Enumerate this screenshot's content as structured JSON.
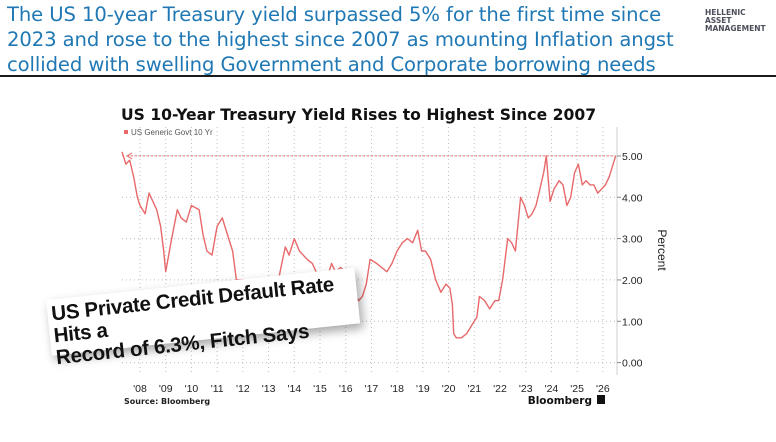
{
  "headline": [
    "The US 10-year Treasury yield surpassed 5% for the first time since",
    "2023 and rose to the highest since 2007 as mounting Inflation angst",
    "collided with swelling Government and Corporate borrowing needs"
  ],
  "logo": [
    "HELLENIC",
    "ASSET",
    "MANAGEMENT"
  ],
  "banner": [
    "US Private Credit Default Rate Hits a",
    "Record of 6.3%, Fitch Says"
  ],
  "colors": {
    "headline": "#1f78b4",
    "series": "#e8696a",
    "rule": "#1a1a1a"
  },
  "chart_data": {
    "type": "line",
    "title": "US 10-Year Treasury Yield Rises to Highest Since 2007",
    "ylabel": "Percent",
    "legend": "US Generic Govt 10 Yr",
    "legend_position": "top-left",
    "source": "Source: Bloomberg",
    "brand": "Bloomberg",
    "ylim": [
      -0.3,
      5.7
    ],
    "xlim": [
      2007.3,
      2026.55
    ],
    "yticks": [
      0,
      1,
      2,
      3,
      4,
      5
    ],
    "ytick_labels": [
      "0.00",
      "1.00",
      "2.00",
      "3.00",
      "4.00",
      "5.00"
    ],
    "xticks": [
      2008,
      2009,
      2010,
      2011,
      2012,
      2013,
      2014,
      2015,
      2016,
      2017,
      2018,
      2019,
      2020,
      2021,
      2022,
      2023,
      2024,
      2025,
      2026
    ],
    "xtick_labels": [
      "'08",
      "'09",
      "'10",
      "'11",
      "'12",
      "'13",
      "'14",
      "'15",
      "'16",
      "'17",
      "'18",
      "'19",
      "'20",
      "'21",
      "'22",
      "'23",
      "'24",
      "'25",
      "'26"
    ],
    "reference_line": {
      "y": 5.0,
      "x_from": 2007.5,
      "x_to": 2026.5
    },
    "series": [
      {
        "name": "US Generic Govt 10 Yr",
        "x": [
          2007.3,
          2007.45,
          2007.6,
          2007.75,
          2007.9,
          2008.0,
          2008.2,
          2008.35,
          2008.5,
          2008.65,
          2008.8,
          2008.92,
          2009.0,
          2009.2,
          2009.45,
          2009.6,
          2009.8,
          2010.0,
          2010.3,
          2010.45,
          2010.6,
          2010.8,
          2011.0,
          2011.2,
          2011.4,
          2011.6,
          2011.75,
          2011.9,
          2012.1,
          2012.3,
          2012.5,
          2012.7,
          2012.9,
          2013.1,
          2013.3,
          2013.45,
          2013.65,
          2013.8,
          2014.0,
          2014.2,
          2014.5,
          2014.7,
          2014.85,
          2015.0,
          2015.1,
          2015.3,
          2015.45,
          2015.6,
          2015.8,
          2016.0,
          2016.2,
          2016.5,
          2016.65,
          2016.8,
          2016.95,
          2017.2,
          2017.4,
          2017.6,
          2017.8,
          2018.0,
          2018.2,
          2018.4,
          2018.6,
          2018.8,
          2018.95,
          2019.1,
          2019.3,
          2019.5,
          2019.7,
          2019.9,
          2020.05,
          2020.15,
          2020.2,
          2020.3,
          2020.5,
          2020.7,
          2020.9,
          2021.1,
          2021.2,
          2021.4,
          2021.6,
          2021.8,
          2021.95,
          2022.1,
          2022.3,
          2022.45,
          2022.6,
          2022.8,
          2022.95,
          2023.1,
          2023.25,
          2023.4,
          2023.55,
          2023.7,
          2023.8,
          2023.95,
          2024.1,
          2024.3,
          2024.45,
          2024.6,
          2024.75,
          2024.9,
          2025.05,
          2025.2,
          2025.35,
          2025.5,
          2025.65,
          2025.8,
          2025.95,
          2026.1,
          2026.25,
          2026.4,
          2026.5
        ],
        "y": [
          5.1,
          4.8,
          4.9,
          4.5,
          4.0,
          3.8,
          3.6,
          4.1,
          3.9,
          3.7,
          3.3,
          2.7,
          2.2,
          2.9,
          3.7,
          3.5,
          3.4,
          3.8,
          3.7,
          3.1,
          2.7,
          2.6,
          3.3,
          3.5,
          3.1,
          2.7,
          2.0,
          2.0,
          2.0,
          1.8,
          1.5,
          1.7,
          1.6,
          1.9,
          1.7,
          2.2,
          2.8,
          2.6,
          3.0,
          2.7,
          2.5,
          2.4,
          2.2,
          2.0,
          1.7,
          2.1,
          2.4,
          2.2,
          2.3,
          2.2,
          1.8,
          1.5,
          1.6,
          1.9,
          2.5,
          2.4,
          2.3,
          2.2,
          2.4,
          2.7,
          2.9,
          3.0,
          2.9,
          3.2,
          2.7,
          2.7,
          2.5,
          2.0,
          1.7,
          1.9,
          1.8,
          1.4,
          0.7,
          0.6,
          0.6,
          0.7,
          0.9,
          1.1,
          1.6,
          1.5,
          1.3,
          1.5,
          1.5,
          2.0,
          3.0,
          2.9,
          2.7,
          4.0,
          3.8,
          3.5,
          3.6,
          3.8,
          4.2,
          4.6,
          5.0,
          3.9,
          4.2,
          4.4,
          4.3,
          3.8,
          4.0,
          4.6,
          4.8,
          4.3,
          4.4,
          4.3,
          4.3,
          4.1,
          4.2,
          4.3,
          4.5,
          4.8,
          5.0
        ]
      }
    ]
  }
}
